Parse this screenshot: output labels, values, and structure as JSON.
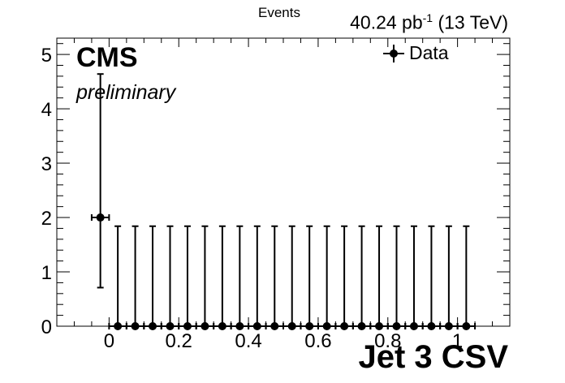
{
  "chart_data": {
    "type": "scatter",
    "ylabel": "Events",
    "xlabel": "Jet 3 CSV",
    "title_left": "CMS",
    "subtitle_left": "preliminary",
    "lumi_main": "40.24 pb",
    "lumi_exp": "-1",
    "lumi_energy": " (13 TeV)",
    "xlim": [
      -0.15,
      1.15
    ],
    "ylim": [
      0,
      5.3
    ],
    "xticks": [
      0,
      0.2,
      0.4,
      0.6,
      0.8,
      1
    ],
    "xtick_labels": [
      "0",
      "0.2",
      "0.4",
      "0.6",
      "0.8",
      "1"
    ],
    "yticks": [
      0,
      1,
      2,
      3,
      4,
      5
    ],
    "ytick_labels": [
      "0",
      "1",
      "2",
      "3",
      "4",
      "5"
    ],
    "legend": [
      {
        "label": "Data",
        "placement": "top-right"
      }
    ],
    "series": [
      {
        "name": "Data",
        "x": [
          -0.025,
          0.025,
          0.075,
          0.125,
          0.175,
          0.225,
          0.275,
          0.325,
          0.375,
          0.425,
          0.475,
          0.525,
          0.575,
          0.625,
          0.675,
          0.725,
          0.775,
          0.825,
          0.875,
          0.925,
          0.975,
          1.025
        ],
        "x_halfwidth": 0.025,
        "y": [
          2,
          0,
          0,
          0,
          0,
          0,
          0,
          0,
          0,
          0,
          0,
          0,
          0,
          0,
          0,
          0,
          0,
          0,
          0,
          0,
          0,
          0
        ],
        "y_err_low": [
          1.29,
          0,
          0,
          0,
          0,
          0,
          0,
          0,
          0,
          0,
          0,
          0,
          0,
          0,
          0,
          0,
          0,
          0,
          0,
          0,
          0,
          0
        ],
        "y_err_high": [
          2.64,
          1.84,
          1.84,
          1.84,
          1.84,
          1.84,
          1.84,
          1.84,
          1.84,
          1.84,
          1.84,
          1.84,
          1.84,
          1.84,
          1.84,
          1.84,
          1.84,
          1.84,
          1.84,
          1.84,
          1.84,
          1.84
        ]
      }
    ]
  }
}
